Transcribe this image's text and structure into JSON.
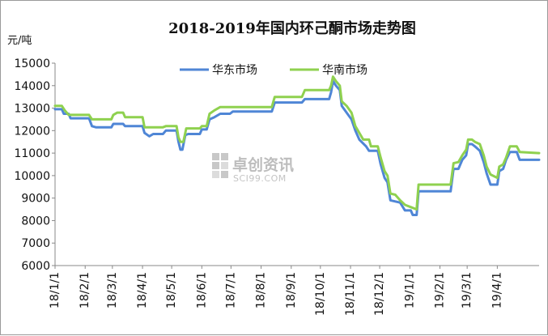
{
  "chart_data": {
    "type": "line",
    "title": "2018-2019年国内环己酮市场走势图",
    "ylabel": "元/吨",
    "ylim": [
      6000,
      15000
    ],
    "yticks": [
      6000,
      7000,
      8000,
      9000,
      10000,
      11000,
      12000,
      13000,
      14000,
      15000
    ],
    "xlim": [
      "2018-01-01",
      "2019-05-14"
    ],
    "xticks": [
      "18/1/1",
      "18/2/1",
      "18/3/1",
      "18/4/1",
      "18/5/1",
      "18/6/1",
      "18/7/1",
      "18/8/1",
      "18/9/1",
      "18/10/1",
      "18/11/1",
      "18/12/1",
      "19/1/1",
      "19/2/1",
      "19/3/1",
      "19/4/1"
    ],
    "tick_dates": [
      "2018-01-01",
      "2018-02-01",
      "2018-03-01",
      "2018-04-01",
      "2018-05-01",
      "2018-06-01",
      "2018-07-01",
      "2018-08-01",
      "2018-09-01",
      "2018-10-01",
      "2018-11-01",
      "2018-12-01",
      "2019-01-01",
      "2019-02-01",
      "2019-03-01",
      "2019-04-01"
    ],
    "legend_position": "top-center",
    "grid": false,
    "series": [
      {
        "name": "华东市场",
        "color": "#4f86d6",
        "points": [
          [
            "2018-01-01",
            12950
          ],
          [
            "2018-01-08",
            12950
          ],
          [
            "2018-01-10",
            12750
          ],
          [
            "2018-01-15",
            12750
          ],
          [
            "2018-01-17",
            12550
          ],
          [
            "2018-02-05",
            12550
          ],
          [
            "2018-02-08",
            12200
          ],
          [
            "2018-02-12",
            12150
          ],
          [
            "2018-02-28",
            12150
          ],
          [
            "2018-03-02",
            12300
          ],
          [
            "2018-03-12",
            12300
          ],
          [
            "2018-03-14",
            12200
          ],
          [
            "2018-04-01",
            12200
          ],
          [
            "2018-04-03",
            11900
          ],
          [
            "2018-04-08",
            11750
          ],
          [
            "2018-04-12",
            11850
          ],
          [
            "2018-04-22",
            11850
          ],
          [
            "2018-04-25",
            12000
          ],
          [
            "2018-05-06",
            12000
          ],
          [
            "2018-05-08",
            11500
          ],
          [
            "2018-05-10",
            11150
          ],
          [
            "2018-05-12",
            11150
          ],
          [
            "2018-05-15",
            11800
          ],
          [
            "2018-05-18",
            11850
          ],
          [
            "2018-05-30",
            11850
          ],
          [
            "2018-06-01",
            12050
          ],
          [
            "2018-06-06",
            12050
          ],
          [
            "2018-06-09",
            12500
          ],
          [
            "2018-06-14",
            12600
          ],
          [
            "2018-06-20",
            12750
          ],
          [
            "2018-06-30",
            12750
          ],
          [
            "2018-07-03",
            12850
          ],
          [
            "2018-08-12",
            12850
          ],
          [
            "2018-08-15",
            13250
          ],
          [
            "2018-09-12",
            13250
          ],
          [
            "2018-09-15",
            13400
          ],
          [
            "2018-10-10",
            13400
          ],
          [
            "2018-10-12",
            13700
          ],
          [
            "2018-10-14",
            14200
          ],
          [
            "2018-10-17",
            14000
          ],
          [
            "2018-10-21",
            13800
          ],
          [
            "2018-10-23",
            13100
          ],
          [
            "2018-10-28",
            12800
          ],
          [
            "2018-11-02",
            12500
          ],
          [
            "2018-11-06",
            12000
          ],
          [
            "2018-11-10",
            11600
          ],
          [
            "2018-11-17",
            11300
          ],
          [
            "2018-11-20",
            11100
          ],
          [
            "2018-11-29",
            11100
          ],
          [
            "2018-12-02",
            10500
          ],
          [
            "2018-12-06",
            9900
          ],
          [
            "2018-12-09",
            9700
          ],
          [
            "2018-12-12",
            8900
          ],
          [
            "2018-12-17",
            8850
          ],
          [
            "2018-12-22",
            8800
          ],
          [
            "2018-12-27",
            8450
          ],
          [
            "2019-01-02",
            8450
          ],
          [
            "2019-01-04",
            8250
          ],
          [
            "2019-01-08",
            8250
          ],
          [
            "2019-01-10",
            9300
          ],
          [
            "2019-02-12",
            9300
          ],
          [
            "2019-02-15",
            10300
          ],
          [
            "2019-02-20",
            10300
          ],
          [
            "2019-02-24",
            10700
          ],
          [
            "2019-02-28",
            10900
          ],
          [
            "2019-03-02",
            11400
          ],
          [
            "2019-03-06",
            11400
          ],
          [
            "2019-03-09",
            11300
          ],
          [
            "2019-03-14",
            11100
          ],
          [
            "2019-03-18",
            10600
          ],
          [
            "2019-03-21",
            10100
          ],
          [
            "2019-03-25",
            9600
          ],
          [
            "2019-04-01",
            9600
          ],
          [
            "2019-04-03",
            10200
          ],
          [
            "2019-04-07",
            10300
          ],
          [
            "2019-04-10",
            10700
          ],
          [
            "2019-04-14",
            11050
          ],
          [
            "2019-04-21",
            11050
          ],
          [
            "2019-04-24",
            10700
          ],
          [
            "2019-05-14",
            10700
          ]
        ]
      },
      {
        "name": "华南市场",
        "color": "#8fd14f",
        "points": [
          [
            "2018-01-01",
            13100
          ],
          [
            "2018-01-08",
            13100
          ],
          [
            "2018-01-11",
            12900
          ],
          [
            "2018-01-15",
            12700
          ],
          [
            "2018-02-05",
            12700
          ],
          [
            "2018-02-08",
            12500
          ],
          [
            "2018-02-28",
            12500
          ],
          [
            "2018-03-02",
            12700
          ],
          [
            "2018-03-06",
            12800
          ],
          [
            "2018-03-12",
            12800
          ],
          [
            "2018-03-14",
            12600
          ],
          [
            "2018-04-01",
            12600
          ],
          [
            "2018-04-03",
            12150
          ],
          [
            "2018-04-22",
            12150
          ],
          [
            "2018-04-25",
            12200
          ],
          [
            "2018-05-06",
            12200
          ],
          [
            "2018-05-08",
            11700
          ],
          [
            "2018-05-10",
            11500
          ],
          [
            "2018-05-13",
            11500
          ],
          [
            "2018-05-16",
            12100
          ],
          [
            "2018-05-30",
            12100
          ],
          [
            "2018-06-01",
            12200
          ],
          [
            "2018-06-06",
            12200
          ],
          [
            "2018-06-09",
            12750
          ],
          [
            "2018-06-14",
            12900
          ],
          [
            "2018-06-20",
            13050
          ],
          [
            "2018-08-12",
            13050
          ],
          [
            "2018-08-15",
            13500
          ],
          [
            "2018-09-12",
            13500
          ],
          [
            "2018-09-15",
            13800
          ],
          [
            "2018-10-10",
            13800
          ],
          [
            "2018-10-12",
            14000
          ],
          [
            "2018-10-14",
            14400
          ],
          [
            "2018-10-17",
            14200
          ],
          [
            "2018-10-21",
            14000
          ],
          [
            "2018-10-23",
            13300
          ],
          [
            "2018-10-28",
            13100
          ],
          [
            "2018-11-02",
            12800
          ],
          [
            "2018-11-06",
            12200
          ],
          [
            "2018-11-10",
            11900
          ],
          [
            "2018-11-14",
            11600
          ],
          [
            "2018-11-20",
            11600
          ],
          [
            "2018-11-22",
            11300
          ],
          [
            "2018-11-29",
            11300
          ],
          [
            "2018-12-02",
            10800
          ],
          [
            "2018-12-06",
            10200
          ],
          [
            "2018-12-09",
            10000
          ],
          [
            "2018-12-12",
            9200
          ],
          [
            "2018-12-17",
            9150
          ],
          [
            "2018-12-22",
            8900
          ],
          [
            "2018-12-27",
            8700
          ],
          [
            "2019-01-02",
            8600
          ],
          [
            "2019-01-08",
            8500
          ],
          [
            "2019-01-10",
            9600
          ],
          [
            "2019-02-12",
            9600
          ],
          [
            "2019-02-15",
            10550
          ],
          [
            "2019-02-20",
            10600
          ],
          [
            "2019-02-24",
            10900
          ],
          [
            "2019-02-28",
            11150
          ],
          [
            "2019-03-02",
            11600
          ],
          [
            "2019-03-06",
            11600
          ],
          [
            "2019-03-09",
            11500
          ],
          [
            "2019-03-14",
            11400
          ],
          [
            "2019-03-18",
            10900
          ],
          [
            "2019-03-21",
            10400
          ],
          [
            "2019-03-25",
            10050
          ],
          [
            "2019-04-01",
            9900
          ],
          [
            "2019-04-03",
            10400
          ],
          [
            "2019-04-07",
            10500
          ],
          [
            "2019-04-10",
            10800
          ],
          [
            "2019-04-14",
            11300
          ],
          [
            "2019-04-21",
            11300
          ],
          [
            "2019-04-24",
            11050
          ],
          [
            "2019-05-14",
            11000
          ]
        ]
      }
    ],
    "watermark": {
      "text": "卓创资讯",
      "subtext": "SCI99.COM"
    }
  }
}
